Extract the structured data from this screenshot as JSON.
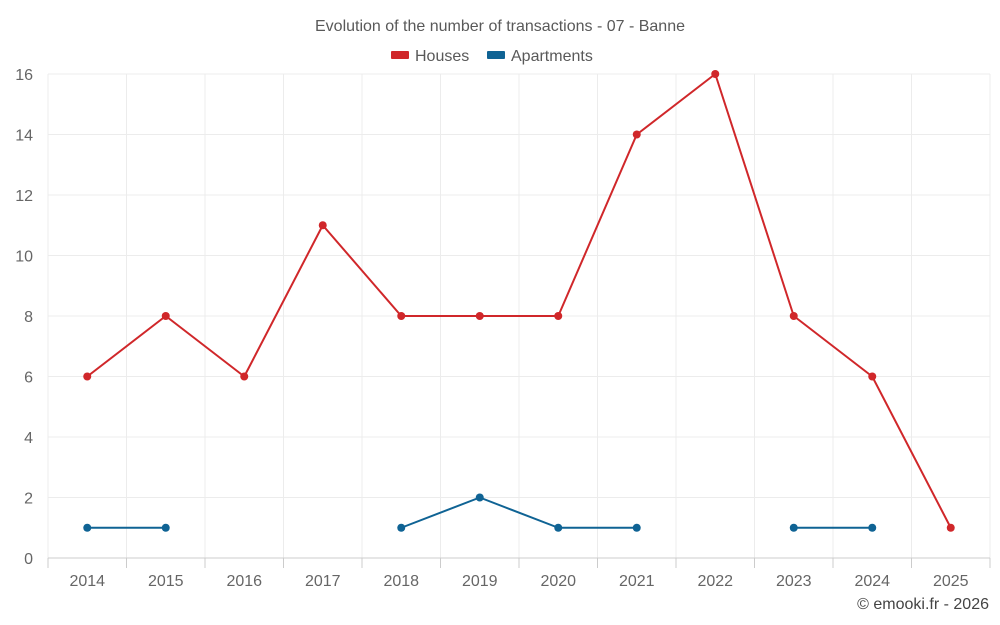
{
  "chart_data": {
    "type": "line",
    "title": "Evolution of the number of transactions - 07 - Banne",
    "categories": [
      "2014",
      "2015",
      "2016",
      "2017",
      "2018",
      "2019",
      "2020",
      "2021",
      "2022",
      "2023",
      "2024",
      "2025"
    ],
    "series": [
      {
        "name": "Houses",
        "color": "#d0272a",
        "values": [
          6,
          8,
          6,
          11,
          8,
          8,
          8,
          14,
          16,
          8,
          6,
          1
        ]
      },
      {
        "name": "Apartments",
        "color": "#0f6394",
        "values": [
          1,
          1,
          null,
          null,
          1,
          2,
          1,
          1,
          null,
          1,
          1,
          null
        ]
      }
    ],
    "ylim": [
      0,
      16
    ],
    "yticks": [
      "0",
      "2",
      "4",
      "6",
      "8",
      "10",
      "12",
      "14",
      "16"
    ],
    "xlabel": "",
    "ylabel": "",
    "grid": true,
    "legend_position": "top-center"
  },
  "credit": "© emooki.fr - 2026"
}
